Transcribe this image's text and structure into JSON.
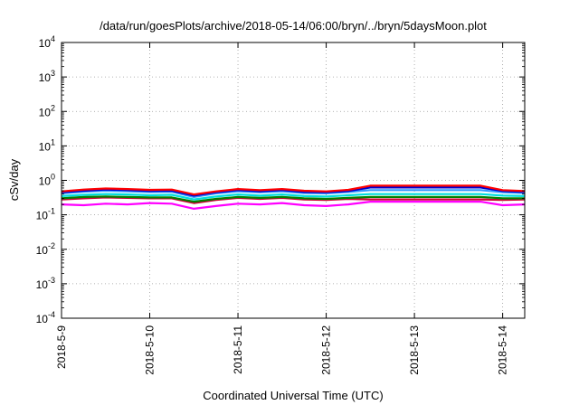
{
  "chart_data": {
    "type": "line",
    "title": "/data/run/goesPlots/archive/2018-05-14/06:00/bryn/../bryn/5daysMoon.plot",
    "xlabel": "Coordinated Universal Time (UTC)",
    "ylabel": "cSv/day",
    "yscale": "log",
    "ylim": [
      0.0001,
      10000
    ],
    "y_ticks": [
      {
        "value": 0.0001,
        "base": "10",
        "exp": "-4"
      },
      {
        "value": 0.001,
        "base": "10",
        "exp": "-3"
      },
      {
        "value": 0.01,
        "base": "10",
        "exp": "-2"
      },
      {
        "value": 0.1,
        "base": "10",
        "exp": "-1"
      },
      {
        "value": 1,
        "base": "10",
        "exp": "0"
      },
      {
        "value": 10,
        "base": "10",
        "exp": "1"
      },
      {
        "value": 100,
        "base": "10",
        "exp": "2"
      },
      {
        "value": 1000,
        "base": "10",
        "exp": "3"
      },
      {
        "value": 10000,
        "base": "10",
        "exp": "4"
      }
    ],
    "xlim": [
      "2018-05-09",
      "2018-05-14 06:00"
    ],
    "x_ticks": [
      {
        "value": "2018-05-09",
        "label": "2018-5-9"
      },
      {
        "value": "2018-05-10",
        "label": "2018-5-10"
      },
      {
        "value": "2018-05-11",
        "label": "2018-5-11"
      },
      {
        "value": "2018-05-12",
        "label": "2018-5-12"
      },
      {
        "value": "2018-05-13",
        "label": "2018-5-13"
      },
      {
        "value": "2018-05-14",
        "label": "2018-5-14"
      }
    ],
    "grid": true,
    "x_hours": [
      0,
      6,
      12,
      18,
      24,
      30,
      36,
      42,
      48,
      54,
      60,
      66,
      72,
      78,
      84,
      90,
      96,
      102,
      108,
      114,
      120,
      126
    ],
    "series": [
      {
        "color": "#ff00ff",
        "values": [
          0.2,
          0.19,
          0.21,
          0.2,
          0.22,
          0.21,
          0.15,
          0.18,
          0.21,
          0.2,
          0.22,
          0.19,
          0.18,
          0.2,
          0.24,
          0.24,
          0.24,
          0.24,
          0.24,
          0.24,
          0.19,
          0.2
        ]
      },
      {
        "color": "#cc0033",
        "values": [
          0.28,
          0.3,
          0.32,
          0.31,
          0.3,
          0.3,
          0.22,
          0.27,
          0.31,
          0.29,
          0.31,
          0.28,
          0.27,
          0.29,
          0.28,
          0.28,
          0.28,
          0.28,
          0.28,
          0.28,
          0.27,
          0.28
        ]
      },
      {
        "color": "#008000",
        "values": [
          0.3,
          0.33,
          0.34,
          0.33,
          0.32,
          0.32,
          0.24,
          0.29,
          0.33,
          0.31,
          0.33,
          0.3,
          0.29,
          0.31,
          0.33,
          0.33,
          0.33,
          0.33,
          0.33,
          0.33,
          0.3,
          0.3
        ]
      },
      {
        "color": "#00dddd",
        "values": [
          0.35,
          0.38,
          0.4,
          0.39,
          0.37,
          0.38,
          0.28,
          0.34,
          0.39,
          0.36,
          0.39,
          0.35,
          0.34,
          0.37,
          0.4,
          0.4,
          0.4,
          0.4,
          0.4,
          0.4,
          0.36,
          0.35
        ]
      },
      {
        "color": "#3399ff",
        "values": [
          0.42,
          0.47,
          0.5,
          0.48,
          0.46,
          0.47,
          0.33,
          0.42,
          0.48,
          0.45,
          0.48,
          0.43,
          0.42,
          0.46,
          0.52,
          0.52,
          0.52,
          0.52,
          0.52,
          0.52,
          0.45,
          0.43
        ]
      },
      {
        "color": "#0000cc",
        "values": [
          0.45,
          0.5,
          0.54,
          0.52,
          0.49,
          0.5,
          0.36,
          0.45,
          0.52,
          0.48,
          0.52,
          0.46,
          0.45,
          0.49,
          0.62,
          0.62,
          0.62,
          0.62,
          0.62,
          0.62,
          0.49,
          0.46
        ]
      },
      {
        "color": "#ff0000",
        "values": [
          0.48,
          0.54,
          0.58,
          0.56,
          0.53,
          0.54,
          0.39,
          0.48,
          0.56,
          0.52,
          0.56,
          0.5,
          0.48,
          0.53,
          0.7,
          0.7,
          0.7,
          0.7,
          0.7,
          0.7,
          0.52,
          0.49
        ]
      }
    ]
  }
}
